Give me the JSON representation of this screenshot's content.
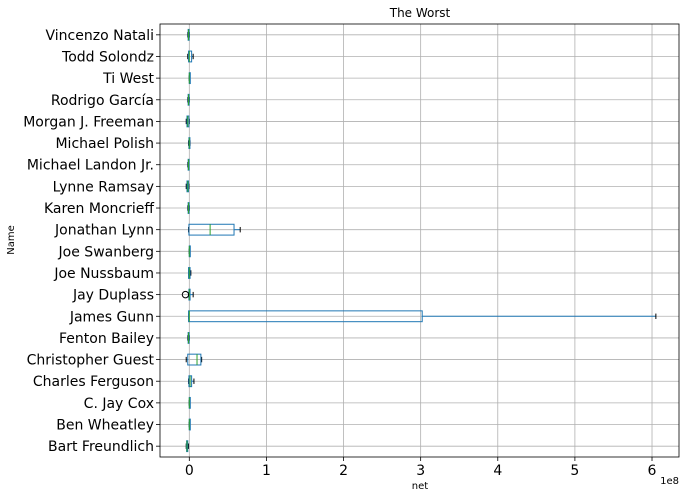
{
  "chart_data": {
    "type": "boxplot",
    "orientation": "horizontal",
    "title": "The Worst",
    "xlabel": "net",
    "ylabel": "Name",
    "x_offset_label": "1e8",
    "xlim": [
      -0.38,
      6.35
    ],
    "xticks": [
      0,
      1,
      2,
      3,
      4,
      5,
      6
    ],
    "x_tick_labels": [
      "0",
      "1",
      "2",
      "3",
      "4",
      "5",
      "6"
    ],
    "grid": true,
    "colors": {
      "box": "#1f77b4",
      "median": "#2ca02c",
      "whisker": "#1f77b4",
      "flier": "#000000"
    },
    "categories": [
      "Bart Freundlich",
      "Ben Wheatley",
      "C. Jay Cox",
      "Charles Ferguson",
      "Christopher Guest",
      "Fenton Bailey",
      "James Gunn",
      "Jay Duplass",
      "Joe Nussbaum",
      "Joe Swanberg",
      "Jonathan Lynn",
      "Karen Moncrieff",
      "Lynne Ramsay",
      "Michael Landon Jr.",
      "Michael Polish",
      "Morgan J. Freeman",
      "Rodrigo García",
      "Ti West",
      "Todd Solondz",
      "Vincenzo Natali"
    ],
    "boxes": [
      {
        "name": "Bart Freundlich",
        "whislo": -0.04,
        "q1": -0.035,
        "med": -0.03,
        "q3": -0.02,
        "whishi": -0.01,
        "fliers": []
      },
      {
        "name": "Ben Wheatley",
        "whislo": 0.0,
        "q1": 0.0,
        "med": 0.0,
        "q3": 0.0,
        "whishi": 0.0,
        "fliers": []
      },
      {
        "name": "C. Jay Cox",
        "whislo": 0.0,
        "q1": 0.0,
        "med": 0.0,
        "q3": 0.0,
        "whishi": 0.0,
        "fliers": []
      },
      {
        "name": "Charles Ferguson",
        "whislo": -0.01,
        "q1": -0.005,
        "med": 0.01,
        "q3": 0.03,
        "whishi": 0.06,
        "fliers": []
      },
      {
        "name": "Christopher Guest",
        "whislo": -0.04,
        "q1": -0.02,
        "med": 0.1,
        "q3": 0.15,
        "whishi": 0.16,
        "fliers": []
      },
      {
        "name": "Fenton Bailey",
        "whislo": -0.02,
        "q1": -0.015,
        "med": -0.01,
        "q3": -0.005,
        "whishi": 0.0,
        "fliers": []
      },
      {
        "name": "James Gunn",
        "whislo": -0.01,
        "q1": -0.01,
        "med": 0.0,
        "q3": 3.02,
        "whishi": 6.05,
        "fliers": []
      },
      {
        "name": "Jay Duplass",
        "whislo": -0.01,
        "q1": -0.005,
        "med": 0.0,
        "q3": 0.01,
        "whishi": 0.05,
        "fliers": [
          -0.05
        ]
      },
      {
        "name": "Joe Nussbaum",
        "whislo": -0.01,
        "q1": -0.01,
        "med": 0.0,
        "q3": 0.01,
        "whishi": 0.02,
        "fliers": []
      },
      {
        "name": "Joe Swanberg",
        "whislo": 0.0,
        "q1": 0.0,
        "med": 0.0,
        "q3": 0.0,
        "whishi": 0.0,
        "fliers": []
      },
      {
        "name": "Jonathan Lynn",
        "whislo": -0.01,
        "q1": -0.005,
        "med": 0.27,
        "q3": 0.58,
        "whishi": 0.66,
        "fliers": []
      },
      {
        "name": "Karen Moncrieff",
        "whislo": -0.02,
        "q1": -0.015,
        "med": -0.01,
        "q3": -0.005,
        "whishi": 0.0,
        "fliers": []
      },
      {
        "name": "Lynne Ramsay",
        "whislo": -0.04,
        "q1": -0.03,
        "med": -0.02,
        "q3": -0.01,
        "whishi": -0.005,
        "fliers": []
      },
      {
        "name": "Michael Landon Jr.",
        "whislo": -0.02,
        "q1": -0.015,
        "med": -0.01,
        "q3": -0.008,
        "whishi": -0.005,
        "fliers": []
      },
      {
        "name": "Michael Polish",
        "whislo": -0.01,
        "q1": -0.005,
        "med": 0.0,
        "q3": 0.005,
        "whishi": 0.01,
        "fliers": []
      },
      {
        "name": "Morgan J. Freeman",
        "whislo": -0.04,
        "q1": -0.03,
        "med": -0.02,
        "q3": -0.005,
        "whishi": 0.0,
        "fliers": []
      },
      {
        "name": "Rodrigo García",
        "whislo": -0.02,
        "q1": -0.015,
        "med": -0.01,
        "q3": -0.005,
        "whishi": 0.0,
        "fliers": []
      },
      {
        "name": "Ti West",
        "whislo": 0.0,
        "q1": 0.0,
        "med": 0.0,
        "q3": 0.0,
        "whishi": 0.0,
        "fliers": []
      },
      {
        "name": "Todd Solondz",
        "whislo": -0.02,
        "q1": -0.01,
        "med": 0.0,
        "q3": 0.03,
        "whishi": 0.05,
        "fliers": []
      },
      {
        "name": "Vincenzo Natali",
        "whislo": -0.02,
        "q1": -0.015,
        "med": -0.01,
        "q3": -0.005,
        "whishi": 0.0,
        "fliers": []
      }
    ]
  }
}
